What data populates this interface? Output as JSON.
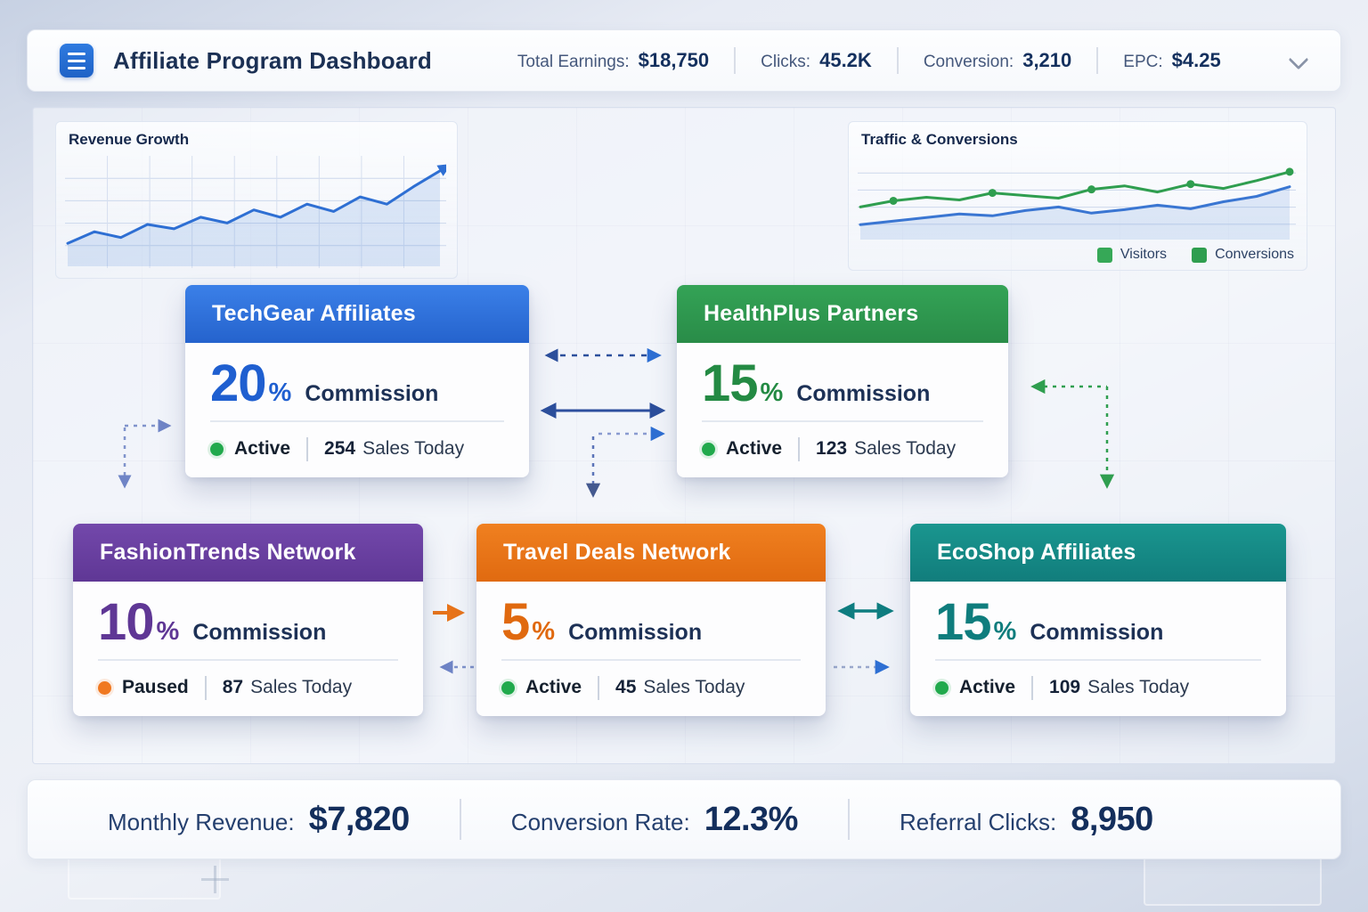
{
  "header": {
    "title": "Affiliate Program Dashboard",
    "stats": [
      {
        "label": "Total Earnings:",
        "value": "$18,750"
      },
      {
        "label": "Clicks:",
        "value": "45.2K"
      },
      {
        "label": "Conversion:",
        "value": "3,210"
      },
      {
        "label": "EPC:",
        "value": "$4.25"
      }
    ]
  },
  "chart_data": [
    {
      "type": "line",
      "title": "Revenue Growth",
      "ylim": [
        0,
        70
      ],
      "grid": "xy",
      "series": [
        {
          "name": "Revenue",
          "color": "#2e6fd3",
          "area": true,
          "arrow": true,
          "values": [
            14,
            22,
            18,
            27,
            24,
            32,
            28,
            37,
            32,
            41,
            36,
            46,
            41,
            53,
            64
          ]
        }
      ]
    },
    {
      "type": "line",
      "title": "Traffic & Conversions",
      "ylim": [
        0,
        85
      ],
      "grid": "h",
      "legend": [
        {
          "label": "Visitors",
          "color": "#36a857"
        },
        {
          "label": "Conversions",
          "color": "#2f9e4f"
        }
      ],
      "series": [
        {
          "name": "Conversions",
          "color": "#3a76d2",
          "area": true,
          "values": [
            14,
            18,
            22,
            26,
            24,
            30,
            34,
            27,
            31,
            36,
            32,
            40,
            46,
            57
          ]
        },
        {
          "name": "Visitors",
          "color": "#2f9e4f",
          "dots": true,
          "values": [
            34,
            41,
            45,
            42,
            50,
            47,
            44,
            54,
            58,
            51,
            60,
            55,
            64,
            74
          ]
        }
      ]
    }
  ],
  "nodes": [
    {
      "title": "TechGear Affiliates",
      "percent": "20",
      "unit": "%",
      "commission_label": "Commission",
      "status": "Active",
      "sales": "254",
      "sales_label": "Sales Today",
      "color": "#2e6fd3"
    },
    {
      "title": "HealthPlus Partners",
      "percent": "15",
      "unit": "%",
      "commission_label": "Commission",
      "status": "Active",
      "sales": "123",
      "sales_label": "Sales Today",
      "color": "#2f9e4f"
    },
    {
      "title": "FashionTrends Network",
      "percent": "10",
      "unit": "%",
      "commission_label": "Commission",
      "status": "Paused",
      "sales": "87",
      "sales_label": "Sales Today",
      "color": "#6a3f9e"
    },
    {
      "title": "Travel Deals Network",
      "percent": "5",
      "unit": "%",
      "commission_label": "Commission",
      "status": "Active",
      "sales": "45",
      "sales_label": "Sales Today",
      "color": "#e8741a"
    },
    {
      "title": "EcoShop Affiliates",
      "percent": "15",
      "unit": "%",
      "commission_label": "Commission",
      "status": "Active",
      "sales": "109",
      "sales_label": "Sales Today",
      "color": "#15898c"
    }
  ],
  "footer": {
    "stats": [
      {
        "label": "Monthly Revenue:",
        "value": "$7,820"
      },
      {
        "label": "Conversion Rate:",
        "value": "12.3%"
      },
      {
        "label": "Referral Clicks:",
        "value": "8,950"
      }
    ]
  }
}
